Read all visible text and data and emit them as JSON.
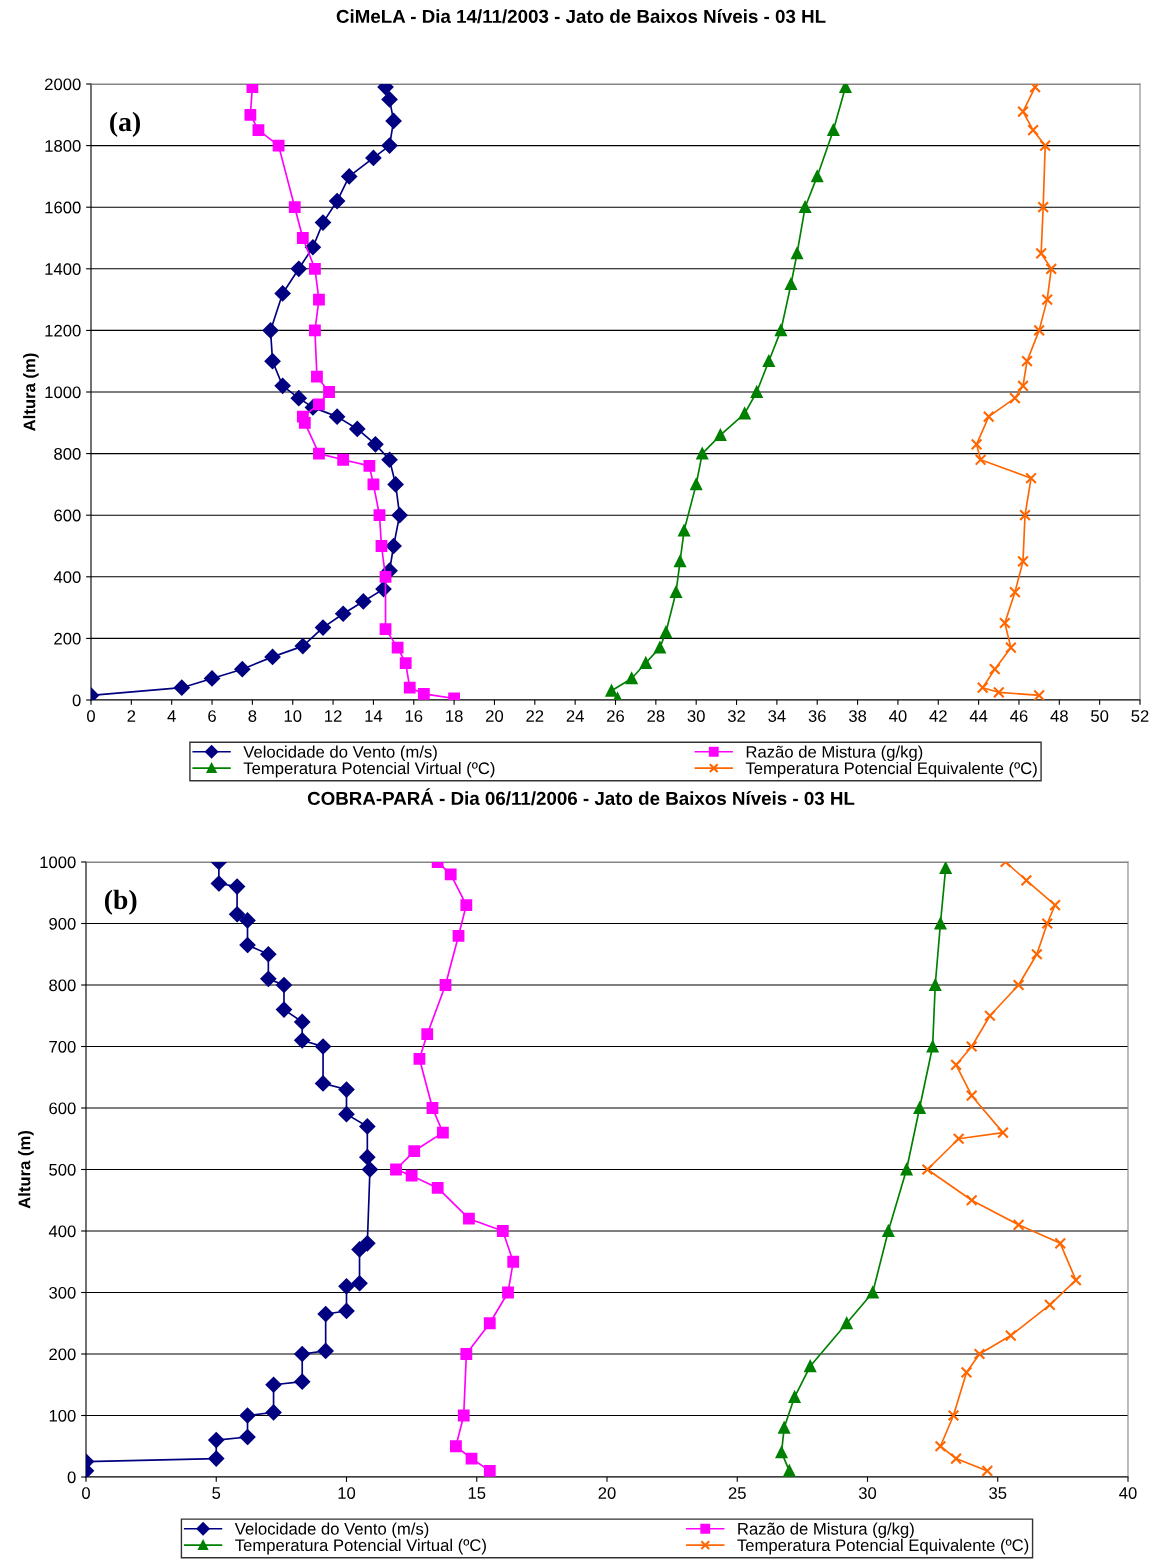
{
  "chart_data": [
    {
      "type": "line",
      "title": "CiMeLA - Dia 14/11/2003 - Jato de Baixos Níveis - 03 HL",
      "ylabel": "Altura (m)",
      "annotations": [
        "(a)"
      ],
      "xlim": [
        0,
        52
      ],
      "xticks": [
        0,
        2,
        4,
        6,
        8,
        10,
        12,
        14,
        16,
        18,
        20,
        22,
        24,
        26,
        28,
        30,
        32,
        34,
        36,
        38,
        40,
        42,
        44,
        46,
        48,
        50,
        52
      ],
      "ylim": [
        0,
        2000
      ],
      "yticks": [
        0,
        200,
        400,
        600,
        800,
        1000,
        1200,
        1400,
        1600,
        1800,
        2000
      ],
      "grid": "y",
      "legend": "bottom",
      "line_style": "solid",
      "series": [
        {
          "name": "Velocidade do Vento (m/s)",
          "color": "#000080",
          "marker": "diamond",
          "x": [
            0,
            4.5,
            6,
            7.5,
            9,
            10.5,
            11.5,
            12.5,
            13.5,
            14.5,
            14.8,
            15,
            15.3,
            15.1,
            14.8,
            14.1,
            13.2,
            12.2,
            11,
            10.3,
            9.5,
            9.0,
            8.9,
            9.5,
            10.3,
            11,
            11.5,
            12.2,
            12.8,
            14,
            14.8,
            15,
            14.8,
            14.6
          ],
          "values": [
            15,
            40,
            70,
            100,
            140,
            175,
            235,
            280,
            320,
            360,
            420,
            500,
            600,
            700,
            780,
            830,
            880,
            920,
            950,
            980,
            1020,
            1100,
            1200,
            1320,
            1400,
            1470,
            1550,
            1620,
            1700,
            1760,
            1800,
            1880,
            1950,
            1990
          ]
        },
        {
          "name": "Razão de Mistura (g/kg)",
          "color": "#ff00ff",
          "marker": "square",
          "x": [
            18,
            16.5,
            15.8,
            15.6,
            15.2,
            14.6,
            14.6,
            14.4,
            14.3,
            14,
            13.8,
            12.5,
            11.3,
            10.6,
            10.5,
            11.3,
            11.8,
            11.2,
            11.1,
            11.3,
            11.1,
            10.5,
            10.1,
            9.3,
            8.3,
            7.9,
            8.0
          ],
          "values": [
            5,
            20,
            40,
            120,
            170,
            230,
            400,
            500,
            600,
            700,
            760,
            780,
            800,
            900,
            920,
            960,
            1000,
            1050,
            1200,
            1300,
            1400,
            1500,
            1600,
            1800,
            1850,
            1900,
            1990
          ]
        },
        {
          "name": "Temperatura Potencial Virtual (ºC)",
          "color": "#008000",
          "marker": "triangle",
          "x": [
            26.1,
            25.8,
            26.8,
            27.5,
            28.2,
            28.5,
            29,
            29.2,
            29.4,
            30,
            30.3,
            31.2,
            32.4,
            33,
            33.6,
            34.2,
            34.7,
            35,
            35.4,
            36,
            36.8,
            37.4
          ],
          "values": [
            5,
            30,
            70,
            120,
            170,
            220,
            350,
            450,
            550,
            700,
            800,
            860,
            930,
            1000,
            1100,
            1200,
            1350,
            1450,
            1600,
            1700,
            1850,
            1990
          ]
        },
        {
          "name": "Temperatura Potencial Equivalente (ºC)",
          "color": "#ff6600",
          "marker": "cross",
          "x": [
            47,
            45,
            44.2,
            44.8,
            45.6,
            45.3,
            45.8,
            46.2,
            46.3,
            46.6,
            44.1,
            43.9,
            44.5,
            45.8,
            46.2,
            46.4,
            47,
            47.4,
            47.6,
            47.1,
            47.2,
            47.3,
            46.7,
            46.2,
            46.8
          ],
          "values": [
            15,
            25,
            40,
            100,
            170,
            250,
            350,
            450,
            600,
            720,
            780,
            830,
            920,
            980,
            1020,
            1100,
            1200,
            1300,
            1400,
            1450,
            1600,
            1800,
            1850,
            1910,
            1990
          ]
        }
      ]
    },
    {
      "type": "line",
      "title": "COBRA-PARÁ - Dia 06/11/2006 - Jato de Baixos Níveis - 03 HL",
      "ylabel": "Altura (m)",
      "annotations": [
        "(b)"
      ],
      "xlim": [
        0,
        40
      ],
      "xticks": [
        0,
        5,
        10,
        15,
        20,
        25,
        30,
        35,
        40
      ],
      "ylim": [
        0,
        1000
      ],
      "yticks": [
        0,
        100,
        200,
        300,
        400,
        500,
        600,
        700,
        800,
        900,
        1000
      ],
      "grid": "y",
      "legend": "bottom",
      "line_style": "solid",
      "series": [
        {
          "name": "Velocidade do Vento (m/s)",
          "color": "#000080",
          "marker": "diamond",
          "x": [
            0,
            0,
            5,
            5,
            6.2,
            6.2,
            7.2,
            7.2,
            8.3,
            8.3,
            9.2,
            9.2,
            10,
            10,
            10.5,
            10.5,
            10.8,
            10.9,
            10.8,
            10.8,
            10,
            10,
            9.1,
            9.1,
            8.3,
            8.3,
            7.6,
            7.6,
            7.0,
            7.0,
            6.2,
            6.2,
            5.8,
            5.8,
            5.1,
            5.1
          ],
          "values": [
            10,
            25,
            30,
            60,
            65,
            100,
            105,
            150,
            155,
            200,
            205,
            265,
            270,
            310,
            315,
            370,
            380,
            500,
            520,
            570,
            590,
            630,
            640,
            700,
            710,
            740,
            760,
            800,
            810,
            850,
            865,
            905,
            915,
            960,
            965,
            1000
          ]
        },
        {
          "name": "Razão de Mistura (g/kg)",
          "color": "#ff00ff",
          "marker": "square",
          "x": [
            15.5,
            14.8,
            14.2,
            14.5,
            14.6,
            15.5,
            16.2,
            16.4,
            16,
            14.7,
            13.5,
            12.5,
            11.9,
            12.6,
            13.7,
            13.3,
            12.8,
            13.1,
            13.8,
            14.3,
            14.6,
            14,
            13.5
          ],
          "values": [
            10,
            30,
            50,
            100,
            200,
            250,
            300,
            350,
            400,
            420,
            470,
            490,
            500,
            530,
            560,
            600,
            680,
            720,
            800,
            880,
            930,
            980,
            1000
          ]
        },
        {
          "name": "Temperatura Potencial Virtual (ºC)",
          "color": "#008000",
          "marker": "triangle",
          "x": [
            27,
            26.7,
            26.8,
            27.2,
            27.8,
            29.2,
            30.2,
            30.8,
            31.5,
            32,
            32.5,
            32.6,
            32.8,
            33
          ],
          "values": [
            10,
            40,
            80,
            130,
            180,
            250,
            300,
            400,
            500,
            600,
            700,
            800,
            900,
            990
          ]
        },
        {
          "name": "Temperatura Potencial Equivalente (ºC)",
          "color": "#ff6600",
          "marker": "cross",
          "x": [
            34.6,
            33.4,
            32.8,
            33.3,
            33.8,
            34.3,
            35.5,
            37,
            38,
            37.4,
            35.8,
            34,
            32.3,
            33.5,
            35.2,
            34,
            33.4,
            34,
            34.7,
            35.8,
            36.5,
            36.9,
            37.2,
            36.1,
            35.3
          ],
          "values": [
            10,
            30,
            50,
            100,
            170,
            200,
            230,
            280,
            320,
            380,
            410,
            450,
            500,
            550,
            560,
            620,
            670,
            700,
            750,
            800,
            850,
            900,
            930,
            970,
            1000
          ]
        }
      ]
    }
  ]
}
